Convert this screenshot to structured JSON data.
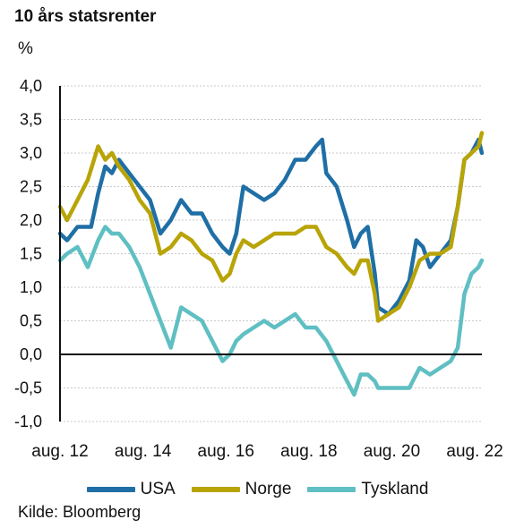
{
  "chart_data": {
    "type": "line",
    "title": "10 års statsrenter",
    "ylabel": "%",
    "ylim": [
      -1.0,
      4.0
    ],
    "yticks": [
      "4,0",
      "3,5",
      "3,0",
      "2,5",
      "2,0",
      "1,5",
      "1,0",
      "0,5",
      "0,0",
      "-0,5",
      "-1,0"
    ],
    "xlim": [
      2012.58,
      2022.75
    ],
    "xticks": [
      {
        "x": 2012.58,
        "label": "aug. 12"
      },
      {
        "x": 2014.58,
        "label": "aug. 14"
      },
      {
        "x": 2016.58,
        "label": "aug. 16"
      },
      {
        "x": 2018.58,
        "label": "aug. 18"
      },
      {
        "x": 2020.58,
        "label": "aug. 20"
      },
      {
        "x": 2022.58,
        "label": "aug. 22"
      }
    ],
    "grid": true,
    "legend_position": "bottom",
    "series": [
      {
        "name": "USA",
        "color": "#1f6fa6",
        "x": [
          2012.58,
          2012.75,
          2013.0,
          2013.33,
          2013.5,
          2013.67,
          2013.83,
          2014.0,
          2014.25,
          2014.5,
          2014.75,
          2015.0,
          2015.25,
          2015.5,
          2015.75,
          2016.0,
          2016.25,
          2016.5,
          2016.67,
          2016.83,
          2017.0,
          2017.25,
          2017.5,
          2017.75,
          2018.0,
          2018.25,
          2018.5,
          2018.75,
          2018.9,
          2019.0,
          2019.25,
          2019.5,
          2019.67,
          2019.83,
          2020.0,
          2020.17,
          2020.25,
          2020.5,
          2020.75,
          2021.0,
          2021.17,
          2021.33,
          2021.5,
          2021.75,
          2022.0,
          2022.17,
          2022.33,
          2022.5,
          2022.67,
          2022.75
        ],
        "values": [
          1.8,
          1.7,
          1.9,
          1.9,
          2.4,
          2.8,
          2.7,
          2.9,
          2.7,
          2.5,
          2.3,
          1.8,
          2.0,
          2.3,
          2.1,
          2.1,
          1.8,
          1.6,
          1.5,
          1.8,
          2.5,
          2.4,
          2.3,
          2.4,
          2.6,
          2.9,
          2.9,
          3.1,
          3.2,
          2.7,
          2.5,
          2.0,
          1.6,
          1.8,
          1.9,
          1.2,
          0.7,
          0.6,
          0.8,
          1.1,
          1.7,
          1.6,
          1.3,
          1.5,
          1.7,
          2.2,
          2.9,
          3.0,
          3.2,
          3.0
        ]
      },
      {
        "name": "Norge",
        "color": "#b8a407",
        "x": [
          2012.58,
          2012.75,
          2013.0,
          2013.25,
          2013.5,
          2013.67,
          2013.83,
          2014.0,
          2014.25,
          2014.5,
          2014.75,
          2015.0,
          2015.25,
          2015.5,
          2015.75,
          2016.0,
          2016.25,
          2016.5,
          2016.67,
          2016.83,
          2017.0,
          2017.25,
          2017.5,
          2017.75,
          2018.0,
          2018.25,
          2018.5,
          2018.75,
          2019.0,
          2019.25,
          2019.5,
          2019.67,
          2019.83,
          2020.0,
          2020.17,
          2020.25,
          2020.5,
          2020.75,
          2021.0,
          2021.25,
          2021.5,
          2021.75,
          2022.0,
          2022.17,
          2022.33,
          2022.5,
          2022.67,
          2022.75
        ],
        "values": [
          2.2,
          2.0,
          2.3,
          2.6,
          3.1,
          2.9,
          3.0,
          2.8,
          2.6,
          2.3,
          2.1,
          1.5,
          1.6,
          1.8,
          1.7,
          1.5,
          1.4,
          1.1,
          1.2,
          1.5,
          1.7,
          1.6,
          1.7,
          1.8,
          1.8,
          1.8,
          1.9,
          1.9,
          1.6,
          1.5,
          1.3,
          1.2,
          1.4,
          1.4,
          0.9,
          0.5,
          0.6,
          0.7,
          1.0,
          1.4,
          1.5,
          1.5,
          1.6,
          2.2,
          2.9,
          3.0,
          3.1,
          3.3
        ]
      },
      {
        "name": "Tyskland",
        "color": "#5fbfc2",
        "x": [
          2012.58,
          2012.75,
          2013.0,
          2013.25,
          2013.5,
          2013.67,
          2013.83,
          2014.0,
          2014.25,
          2014.5,
          2014.75,
          2015.0,
          2015.25,
          2015.5,
          2015.75,
          2016.0,
          2016.25,
          2016.5,
          2016.67,
          2016.83,
          2017.0,
          2017.25,
          2017.5,
          2017.75,
          2018.0,
          2018.25,
          2018.5,
          2018.75,
          2019.0,
          2019.25,
          2019.5,
          2019.67,
          2019.83,
          2020.0,
          2020.17,
          2020.25,
          2020.5,
          2020.75,
          2021.0,
          2021.25,
          2021.5,
          2021.75,
          2022.0,
          2022.17,
          2022.33,
          2022.5,
          2022.67,
          2022.75
        ],
        "values": [
          1.4,
          1.5,
          1.6,
          1.3,
          1.7,
          1.9,
          1.8,
          1.8,
          1.6,
          1.3,
          0.9,
          0.5,
          0.1,
          0.7,
          0.6,
          0.5,
          0.2,
          -0.1,
          0.0,
          0.2,
          0.3,
          0.4,
          0.5,
          0.4,
          0.5,
          0.6,
          0.4,
          0.4,
          0.2,
          -0.1,
          -0.4,
          -0.6,
          -0.3,
          -0.3,
          -0.4,
          -0.5,
          -0.5,
          -0.5,
          -0.5,
          -0.2,
          -0.3,
          -0.2,
          -0.1,
          0.1,
          0.9,
          1.2,
          1.3,
          1.4
        ]
      }
    ]
  },
  "footer": {
    "source": "Kilde: Bloomberg"
  }
}
